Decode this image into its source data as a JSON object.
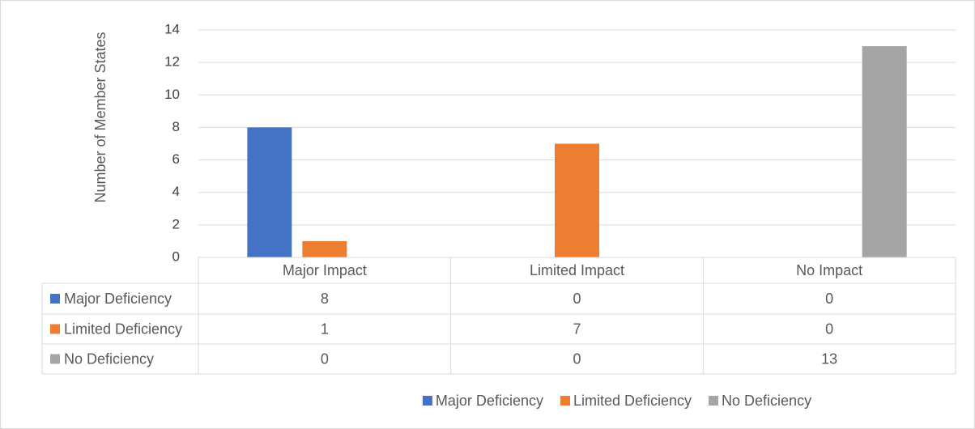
{
  "chart_data": {
    "type": "bar",
    "y_label": "Number of Member States",
    "categories": [
      "Major Impact",
      "Limited Impact",
      "No Impact"
    ],
    "series": [
      {
        "name": "Major Deficiency",
        "color": "#4472c4",
        "values": [
          8,
          0,
          0
        ]
      },
      {
        "name": "Limited Deficiency",
        "color": "#ed7d31",
        "values": [
          1,
          7,
          0
        ]
      },
      {
        "name": "No Deficiency",
        "color": "#a5a5a5",
        "values": [
          0,
          0,
          13
        ]
      }
    ],
    "ylim": [
      0,
      14
    ],
    "yticks": [
      0,
      2,
      4,
      6,
      8,
      10,
      12,
      14
    ],
    "grid": true,
    "data_table": true,
    "legend": "bottom"
  }
}
